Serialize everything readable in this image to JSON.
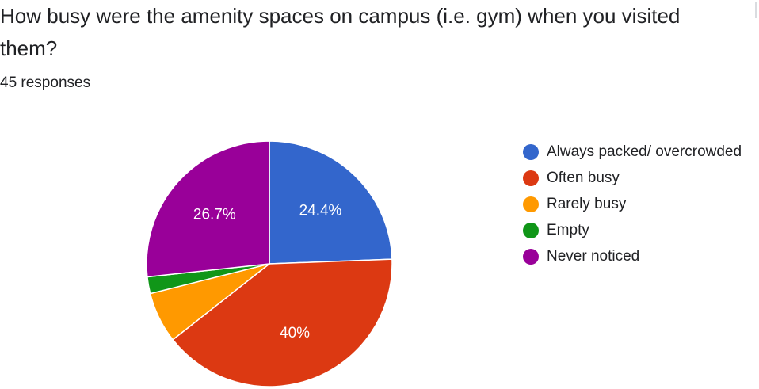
{
  "question": {
    "title": "How busy were the amenity spaces on campus (i.e. gym)  when you visited them?",
    "responses": "45 responses"
  },
  "chart_data": {
    "type": "pie",
    "categories": [
      "Always packed/ overcrowded",
      "Often busy",
      "Rarely busy",
      "Empty",
      "Never noticed"
    ],
    "values": [
      24.4,
      40,
      6.7,
      2.2,
      26.7
    ],
    "labels": [
      "24.4%",
      "40%",
      "",
      "",
      "26.7%"
    ],
    "colors": [
      "#3366cc",
      "#dc3912",
      "#ff9900",
      "#109618",
      "#990099"
    ],
    "start_angle_deg": 90,
    "direction": "clockwise",
    "legend_position": "right"
  }
}
